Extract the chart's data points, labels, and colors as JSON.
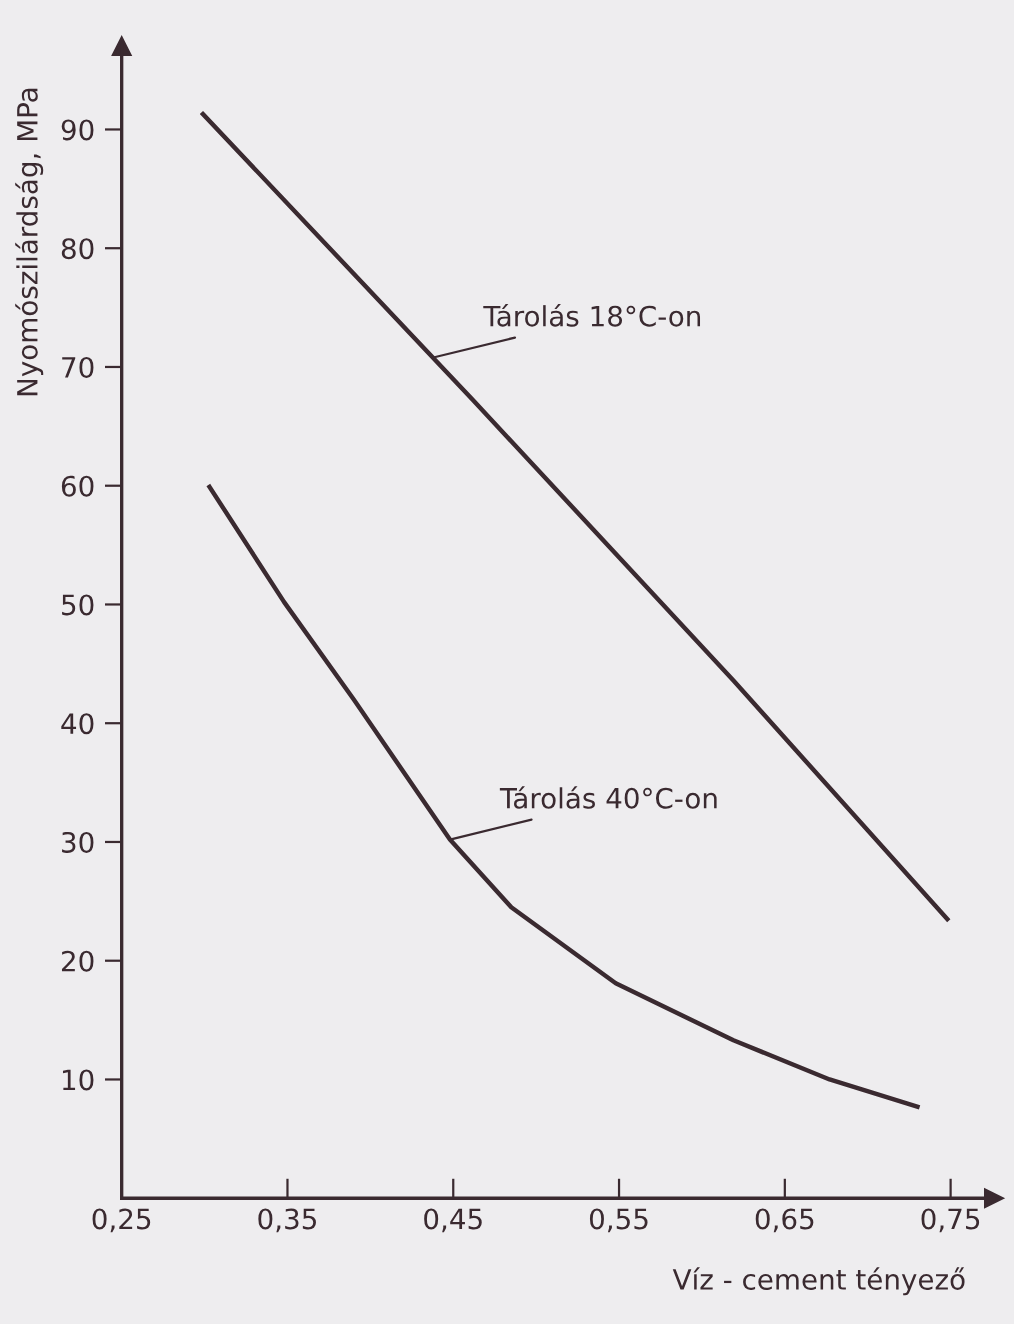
{
  "chart_data": {
    "type": "line",
    "xlabel": "Víz - cement tényező",
    "ylabel": "Nyomószilárdság, MPa",
    "xlim": [
      0.25,
      0.776
    ],
    "ylim": [
      0,
      97
    ],
    "xticks": [
      {
        "value": 0.25,
        "label": "0,25"
      },
      {
        "value": 0.35,
        "label": "0,35"
      },
      {
        "value": 0.45,
        "label": "0,45"
      },
      {
        "value": 0.55,
        "label": "0,55"
      },
      {
        "value": 0.65,
        "label": "0,65"
      },
      {
        "value": 0.75,
        "label": "0,75"
      }
    ],
    "yticks": [
      10,
      20,
      30,
      40,
      50,
      60,
      70,
      80,
      90
    ],
    "grid": false,
    "legend": false,
    "marker": "none",
    "line_style": "solid",
    "series": [
      {
        "color": "#3a2a30",
        "x": [
          0.299,
          0.462,
          0.619,
          0.748
        ],
        "values": [
          91.3,
          67.2,
          43.6,
          23.5
        ]
      },
      {
        "color": "#3a2a30",
        "x": [
          0.303,
          0.348,
          0.39,
          0.448,
          0.485,
          0.548,
          0.619,
          0.677,
          0.73
        ],
        "values": [
          59.9,
          50.2,
          42.0,
          30.2,
          24.5,
          18.1,
          13.3,
          10.0,
          7.7
        ]
      }
    ],
    "annotations": [
      {
        "text": "Tárolás 18°C-on",
        "x": 0.438,
        "y": 70.8
      },
      {
        "text": "Tárolás 40°C-on",
        "x": 0.448,
        "y": 30.2
      }
    ]
  }
}
